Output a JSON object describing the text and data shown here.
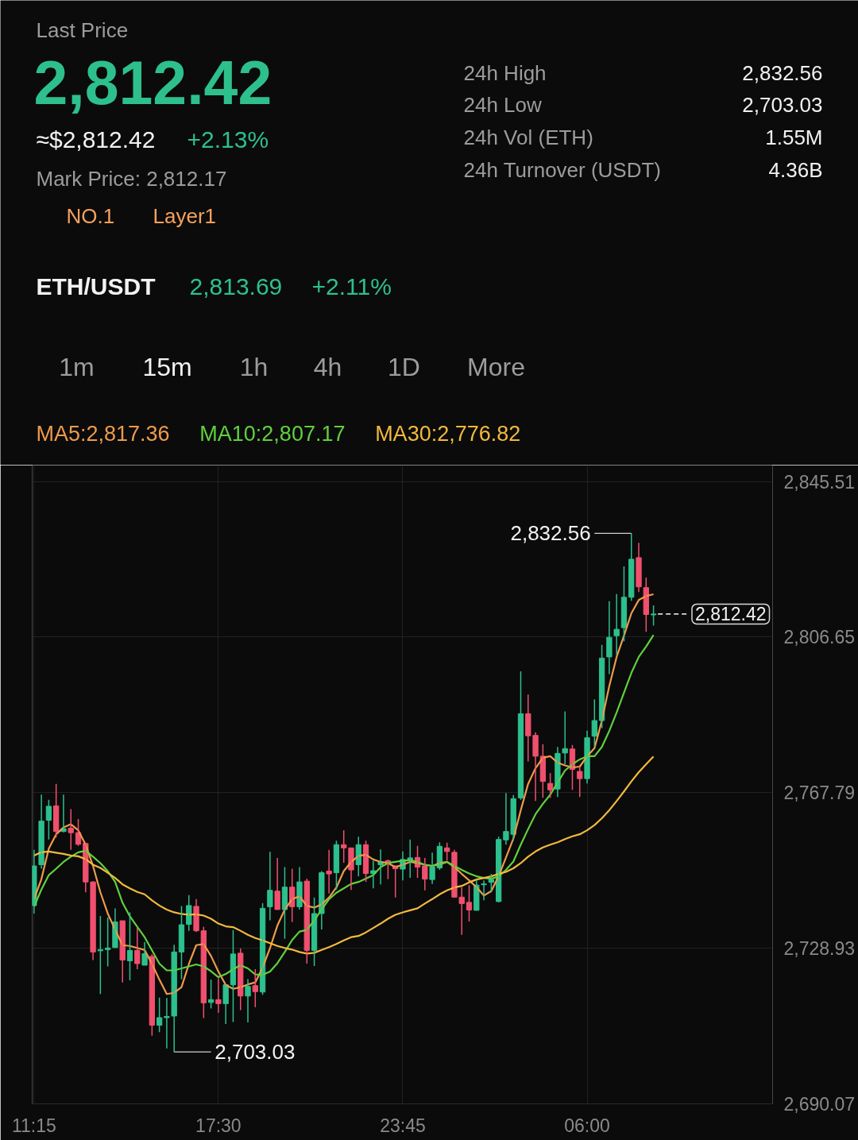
{
  "chart_data": {
    "type": "candlestick",
    "title": "ETH/USDT",
    "annotations": [
      "Last Price",
      "2,812.42",
      "≈$2,812.42",
      "+2.13%",
      "Mark Price: 2,812.17",
      "NO.1",
      "Layer1",
      "24h High",
      "2,832.56",
      "24h Low",
      "2,703.03",
      "24h Vol (ETH)",
      "1.55M",
      "24h Turnover (USDT)",
      "4.36B",
      "2,813.69",
      "+2.11%",
      "1m",
      "15m",
      "1h",
      "4h",
      "1D",
      "More",
      "2,832.56",
      "2,703.03"
    ],
    "categories": [
      "11:15",
      null,
      null,
      null,
      null,
      null,
      null,
      null,
      null,
      null,
      null,
      null,
      null,
      null,
      null,
      null,
      null,
      null,
      null,
      null,
      null,
      null,
      null,
      null,
      null,
      "17:30",
      null,
      null,
      null,
      null,
      null,
      null,
      null,
      null,
      null,
      null,
      null,
      null,
      null,
      null,
      null,
      null,
      null,
      null,
      null,
      null,
      null,
      null,
      null,
      null,
      "23:45",
      null,
      null,
      null,
      null,
      null,
      null,
      null,
      null,
      null,
      null,
      null,
      null,
      null,
      null,
      null,
      null,
      null,
      null,
      null,
      null,
      null,
      null,
      null,
      null,
      "06:00",
      null,
      null,
      null,
      null,
      null,
      null,
      null,
      null,
      null
    ],
    "ohlc": [
      [
        2739.6,
        2753.5,
        2737.6,
        2749.5
      ],
      [
        2749.8,
        2767.3,
        2748.8,
        2760.7
      ],
      [
        2760.9,
        2766.0,
        2756.1,
        2764.4
      ],
      [
        2764.5,
        2770.0,
        2756.6,
        2758.1
      ],
      [
        2758.1,
        2767.3,
        2757.9,
        2758.8
      ],
      [
        2758.9,
        2763.7,
        2753.5,
        2757.8
      ],
      [
        2757.8,
        2761.2,
        2754.5,
        2754.9
      ],
      [
        2755.1,
        2755.1,
        2742.9,
        2745.5
      ],
      [
        2745.5,
        2745.7,
        2726.0,
        2728.0
      ],
      [
        2728.3,
        2737.0,
        2717.5,
        2728.6
      ],
      [
        2728.6,
        2736.6,
        2724.4,
        2729.0
      ],
      [
        2729.1,
        2738.9,
        2729.0,
        2735.5
      ],
      [
        2735.8,
        2735.8,
        2720.4,
        2726.0
      ],
      [
        2725.8,
        2737.9,
        2720.9,
        2728.4
      ],
      [
        2728.4,
        2734.2,
        2723.7,
        2725.1
      ],
      [
        2724.7,
        2730.5,
        2724.7,
        2727.6
      ],
      [
        2726.9,
        2727.4,
        2707.1,
        2709.7
      ],
      [
        2709.7,
        2716.6,
        2708.0,
        2711.6
      ],
      [
        2711.6,
        2716.5,
        2703.9,
        2711.9
      ],
      [
        2712.0,
        2729.8,
        2703.03,
        2728.0
      ],
      [
        2728.0,
        2739.5,
        2721.2,
        2734.8
      ],
      [
        2734.9,
        2742.2,
        2733.3,
        2739.6
      ],
      [
        2739.4,
        2741.2,
        2733.0,
        2733.3
      ],
      [
        2733.3,
        2734.3,
        2711.5,
        2715.3
      ],
      [
        2715.4,
        2721.1,
        2713.9,
        2716.1
      ],
      [
        2716.1,
        2721.4,
        2712.8,
        2715.1
      ],
      [
        2715.1,
        2719.8,
        2710.0,
        2719.8
      ],
      [
        2719.8,
        2733.5,
        2710.5,
        2727.5
      ],
      [
        2727.7,
        2728.9,
        2713.5,
        2717.0
      ],
      [
        2717.0,
        2721.2,
        2710.4,
        2719.4
      ],
      [
        2719.6,
        2723.7,
        2714.2,
        2718.1
      ],
      [
        2718.0,
        2740.2,
        2717.3,
        2738.9
      ],
      [
        2739.3,
        2753.0,
        2735.9,
        2743.4
      ],
      [
        2743.2,
        2751.5,
        2738.6,
        2738.6
      ],
      [
        2738.6,
        2749.2,
        2731.3,
        2744.2
      ],
      [
        2744.2,
        2748.8,
        2735.5,
        2739.3
      ],
      [
        2739.3,
        2749.2,
        2738.6,
        2745.5
      ],
      [
        2745.7,
        2746.3,
        2725.1,
        2728.4
      ],
      [
        2728.4,
        2741.6,
        2724.5,
        2737.6
      ],
      [
        2737.6,
        2748.2,
        2733.6,
        2747.8
      ],
      [
        2748.2,
        2753.5,
        2742.6,
        2747.5
      ],
      [
        2747.8,
        2755.8,
        2743.6,
        2754.8
      ],
      [
        2754.8,
        2758.4,
        2750.3,
        2754.0
      ],
      [
        2754.0,
        2754.0,
        2743.5,
        2748.5
      ],
      [
        2749.8,
        2756.8,
        2746.9,
        2754.8
      ],
      [
        2754.8,
        2755.8,
        2745.5,
        2747.6
      ],
      [
        2747.6,
        2750.8,
        2743.9,
        2748.3
      ],
      [
        2749.8,
        2753.6,
        2744.9,
        2750.4
      ],
      [
        2750.8,
        2751.1,
        2746.2,
        2750.2
      ],
      [
        2749.5,
        2749.5,
        2741.6,
        2748.8
      ],
      [
        2748.7,
        2753.1,
        2745.9,
        2751.1
      ],
      [
        2750.8,
        2756.1,
        2746.5,
        2751.5
      ],
      [
        2751.6,
        2754.5,
        2746.5,
        2749.2
      ],
      [
        2749.5,
        2751.5,
        2743.4,
        2746.2
      ],
      [
        2746.1,
        2752.8,
        2745.0,
        2749.2
      ],
      [
        2749.0,
        2755.4,
        2748.5,
        2754.4
      ],
      [
        2754.0,
        2755.3,
        2750.8,
        2753.1
      ],
      [
        2752.9,
        2753.5,
        2741.6,
        2741.7
      ],
      [
        2741.7,
        2744.2,
        2732.3,
        2740.1
      ],
      [
        2740.4,
        2744.7,
        2735.6,
        2738.5
      ],
      [
        2738.4,
        2746.1,
        2738.4,
        2744.7
      ],
      [
        2744.8,
        2745.9,
        2740.9,
        2745.0
      ],
      [
        2745.4,
        2747.5,
        2742.9,
        2746.1
      ],
      [
        2740.6,
        2756.8,
        2740.4,
        2756.1
      ],
      [
        2756.0,
        2767.7,
        2754.8,
        2758.1
      ],
      [
        2757.4,
        2767.2,
        2755.8,
        2766.3
      ],
      [
        2766.5,
        2798.1,
        2766.0,
        2787.5
      ],
      [
        2787.5,
        2792.3,
        2775.6,
        2782.0
      ],
      [
        2782.1,
        2782.9,
        2765.7,
        2776.9
      ],
      [
        2776.9,
        2779.9,
        2766.5,
        2770.6
      ],
      [
        2770.1,
        2772.7,
        2766.5,
        2768.5
      ],
      [
        2768.7,
        2779.2,
        2766.7,
        2777.6
      ],
      [
        2777.7,
        2788.1,
        2774.9,
        2778.8
      ],
      [
        2778.7,
        2779.7,
        2768.5,
        2773.6
      ],
      [
        2773.1,
        2774.3,
        2766.7,
        2771.3
      ],
      [
        2771.3,
        2783.3,
        2770.1,
        2781.5
      ],
      [
        2781.9,
        2791.1,
        2779.2,
        2785.8
      ],
      [
        2785.8,
        2804.7,
        2783.9,
        2801.4
      ],
      [
        2801.7,
        2815.6,
        2797.4,
        2806.6
      ],
      [
        2807.0,
        2817.4,
        2802.2,
        2808.6
      ],
      [
        2809.0,
        2824.3,
        2805.6,
        2816.6
      ],
      [
        2816.6,
        2832.56,
        2815.7,
        2826.1
      ],
      [
        2826.5,
        2830.2,
        2817.9,
        2819.2
      ],
      [
        2819.0,
        2821.5,
        2808.0,
        2812.3
      ],
      [
        2812.2,
        2814.6,
        2809.5,
        2812.42
      ]
    ],
    "colors": [
      "#2dc08d",
      "#2dc08d",
      "#2dc08d",
      "#f0506e",
      "#2dc08d",
      "#f0506e",
      "#f0506e",
      "#f0506e",
      "#f0506e",
      "#2dc08d",
      "#2dc08d",
      "#2dc08d",
      "#f0506e",
      "#2dc08d",
      "#f0506e",
      "#2dc08d",
      "#f0506e",
      "#2dc08d",
      "#2dc08d",
      "#2dc08d",
      "#2dc08d",
      "#2dc08d",
      "#f0506e",
      "#f0506e",
      "#2dc08d",
      "#f0506e",
      "#2dc08d",
      "#2dc08d",
      "#f0506e",
      "#2dc08d",
      "#f0506e",
      "#2dc08d",
      "#2dc08d",
      "#f0506e",
      "#2dc08d",
      "#f0506e",
      "#2dc08d",
      "#f0506e",
      "#2dc08d",
      "#2dc08d",
      "#f0506e",
      "#2dc08d",
      "#f0506e",
      "#f0506e",
      "#2dc08d",
      "#f0506e",
      "#2dc08d",
      "#2dc08d",
      "#f0506e",
      "#f0506e",
      "#2dc08d",
      "#2dc08d",
      "#f0506e",
      "#f0506e",
      "#2dc08d",
      "#2dc08d",
      "#f0506e",
      "#f0506e",
      "#f0506e",
      "#f0506e",
      "#2dc08d",
      "#2dc08d",
      "#2dc08d",
      "#2dc08d",
      "#2dc08d",
      "#2dc08d",
      "#2dc08d",
      "#f0506e",
      "#f0506e",
      "#f0506e",
      "#f0506e",
      "#2dc08d",
      "#2dc08d",
      "#f0506e",
      "#f0506e",
      "#2dc08d",
      "#2dc08d",
      "#2dc08d",
      "#2dc08d",
      "#2dc08d",
      "#2dc08d",
      "#2dc08d",
      "#f0506e",
      "#f0506e",
      "#2dc08d"
    ],
    "series": [
      {
        "name": "MA5:2,817.36",
        "type": "line",
        "color": "#ee9b4a",
        "values": [
          2741.2,
          2746.2,
          2753.8,
          2757.4,
          2759.1,
          2759.9,
          2758.4,
          2754.8,
          2749.5,
          2742.9,
          2737.6,
          2733.6,
          2729.7,
          2729.5,
          2729.0,
          2728.5,
          2725.0,
          2721.1,
          2717.5,
          2717.8,
          2719.2,
          2725.0,
          2729.7,
          2730.0,
          2727.0,
          2723.1,
          2719.8,
          2718.8,
          2719.2,
          2719.9,
          2720.4,
          2724.1,
          2729.0,
          2734.6,
          2738.6,
          2741.2,
          2741.9,
          2739.5,
          2739.1,
          2739.9,
          2741.6,
          2744.1,
          2748.2,
          2750.5,
          2752.0,
          2752.3,
          2751.1,
          2750.5,
          2750.2,
          2749.2,
          2749.8,
          2750.5,
          2750.2,
          2749.8,
          2749.5,
          2750.2,
          2750.5,
          2749.2,
          2747.5,
          2745.9,
          2744.2,
          2742.1,
          2743.2,
          2746.9,
          2751.6,
          2756.3,
          2763.4,
          2770.0,
          2773.9,
          2776.5,
          2776.9,
          2775.3,
          2774.6,
          2774.1,
          2774.3,
          2776.9,
          2778.9,
          2785.8,
          2794.4,
          2801.7,
          2807.0,
          2812.6,
          2815.9,
          2816.9,
          2817.36
        ]
      },
      {
        "name": "MA10:2,807.17",
        "type": "line",
        "color": "#5fd13e",
        "values": [
          2739.3,
          2743.6,
          2747.2,
          2748.8,
          2750.5,
          2751.8,
          2752.9,
          2753.3,
          2751.8,
          2750.2,
          2748.2,
          2745.5,
          2740.3,
          2736.9,
          2734.3,
          2731.7,
          2728.4,
          2725.1,
          2723.4,
          2723.4,
          2723.9,
          2724.4,
          2724.9,
          2724.4,
          2723.2,
          2721.7,
          2722.5,
          2723.7,
          2724.7,
          2723.9,
          2722.4,
          2722.3,
          2723.1,
          2725.2,
          2728.0,
          2731.0,
          2733.1,
          2733.5,
          2735.9,
          2738.6,
          2741.2,
          2742.8,
          2743.9,
          2745.0,
          2745.5,
          2746.3,
          2747.2,
          2749.2,
          2750.2,
          2750.5,
          2750.8,
          2750.9,
          2750.5,
          2749.8,
          2749.5,
          2749.8,
          2750.5,
          2749.5,
          2748.5,
          2747.6,
          2746.9,
          2746.5,
          2746.3,
          2746.9,
          2748.5,
          2750.6,
          2754.8,
          2758.7,
          2762.4,
          2765.0,
          2767.3,
          2770.3,
          2773.3,
          2774.9,
          2776.1,
          2776.9,
          2776.9,
          2779.2,
          2783.2,
          2787.8,
          2792.8,
          2797.7,
          2801.7,
          2804.3,
          2807.17
        ]
      },
      {
        "name": "MA30:2,776.82",
        "type": "line",
        "color": "#f2b93c",
        "values": [
          2752.1,
          2752.9,
          2753.1,
          2752.8,
          2752.5,
          2752.1,
          2751.9,
          2751.2,
          2749.8,
          2749.0,
          2747.8,
          2746.5,
          2744.9,
          2743.9,
          2743.0,
          2742.4,
          2740.9,
          2739.6,
          2738.6,
          2737.9,
          2737.5,
          2737.3,
          2737.4,
          2737.1,
          2736.3,
          2735.1,
          2734.4,
          2734.2,
          2733.3,
          2732.3,
          2731.5,
          2730.9,
          2730.2,
          2729.5,
          2729.0,
          2728.6,
          2728.0,
          2727.6,
          2727.8,
          2728.5,
          2729.2,
          2730.0,
          2730.9,
          2731.7,
          2732.0,
          2732.9,
          2734.0,
          2735.1,
          2736.3,
          2737.3,
          2737.9,
          2738.4,
          2738.9,
          2740.1,
          2741.2,
          2742.4,
          2743.4,
          2744.1,
          2744.5,
          2745.4,
          2746.1,
          2746.5,
          2746.9,
          2747.5,
          2748.0,
          2748.9,
          2750.2,
          2751.8,
          2753.1,
          2754.1,
          2754.8,
          2755.4,
          2756.2,
          2756.9,
          2757.4,
          2758.4,
          2759.7,
          2761.4,
          2763.4,
          2765.7,
          2768.1,
          2770.6,
          2772.9,
          2774.9,
          2776.82
        ]
      }
    ],
    "ylim": [
      2690.07,
      2849.6
    ],
    "yticks": [
      {
        "value": 2690.07,
        "label": "2,690.07"
      },
      {
        "value": 2728.93,
        "label": "2,728.93"
      },
      {
        "value": 2767.79,
        "label": "2,767.79"
      },
      {
        "value": 2806.65,
        "label": "2,806.65"
      },
      {
        "value": 2845.51,
        "label": "2,845.51"
      }
    ],
    "ref_lines": [
      {
        "axis": "y",
        "value": 2812.42,
        "label": "2,812.42",
        "color": "#d8d8d8",
        "line_style": "dashed"
      }
    ],
    "grid": true,
    "legend": "top"
  }
}
